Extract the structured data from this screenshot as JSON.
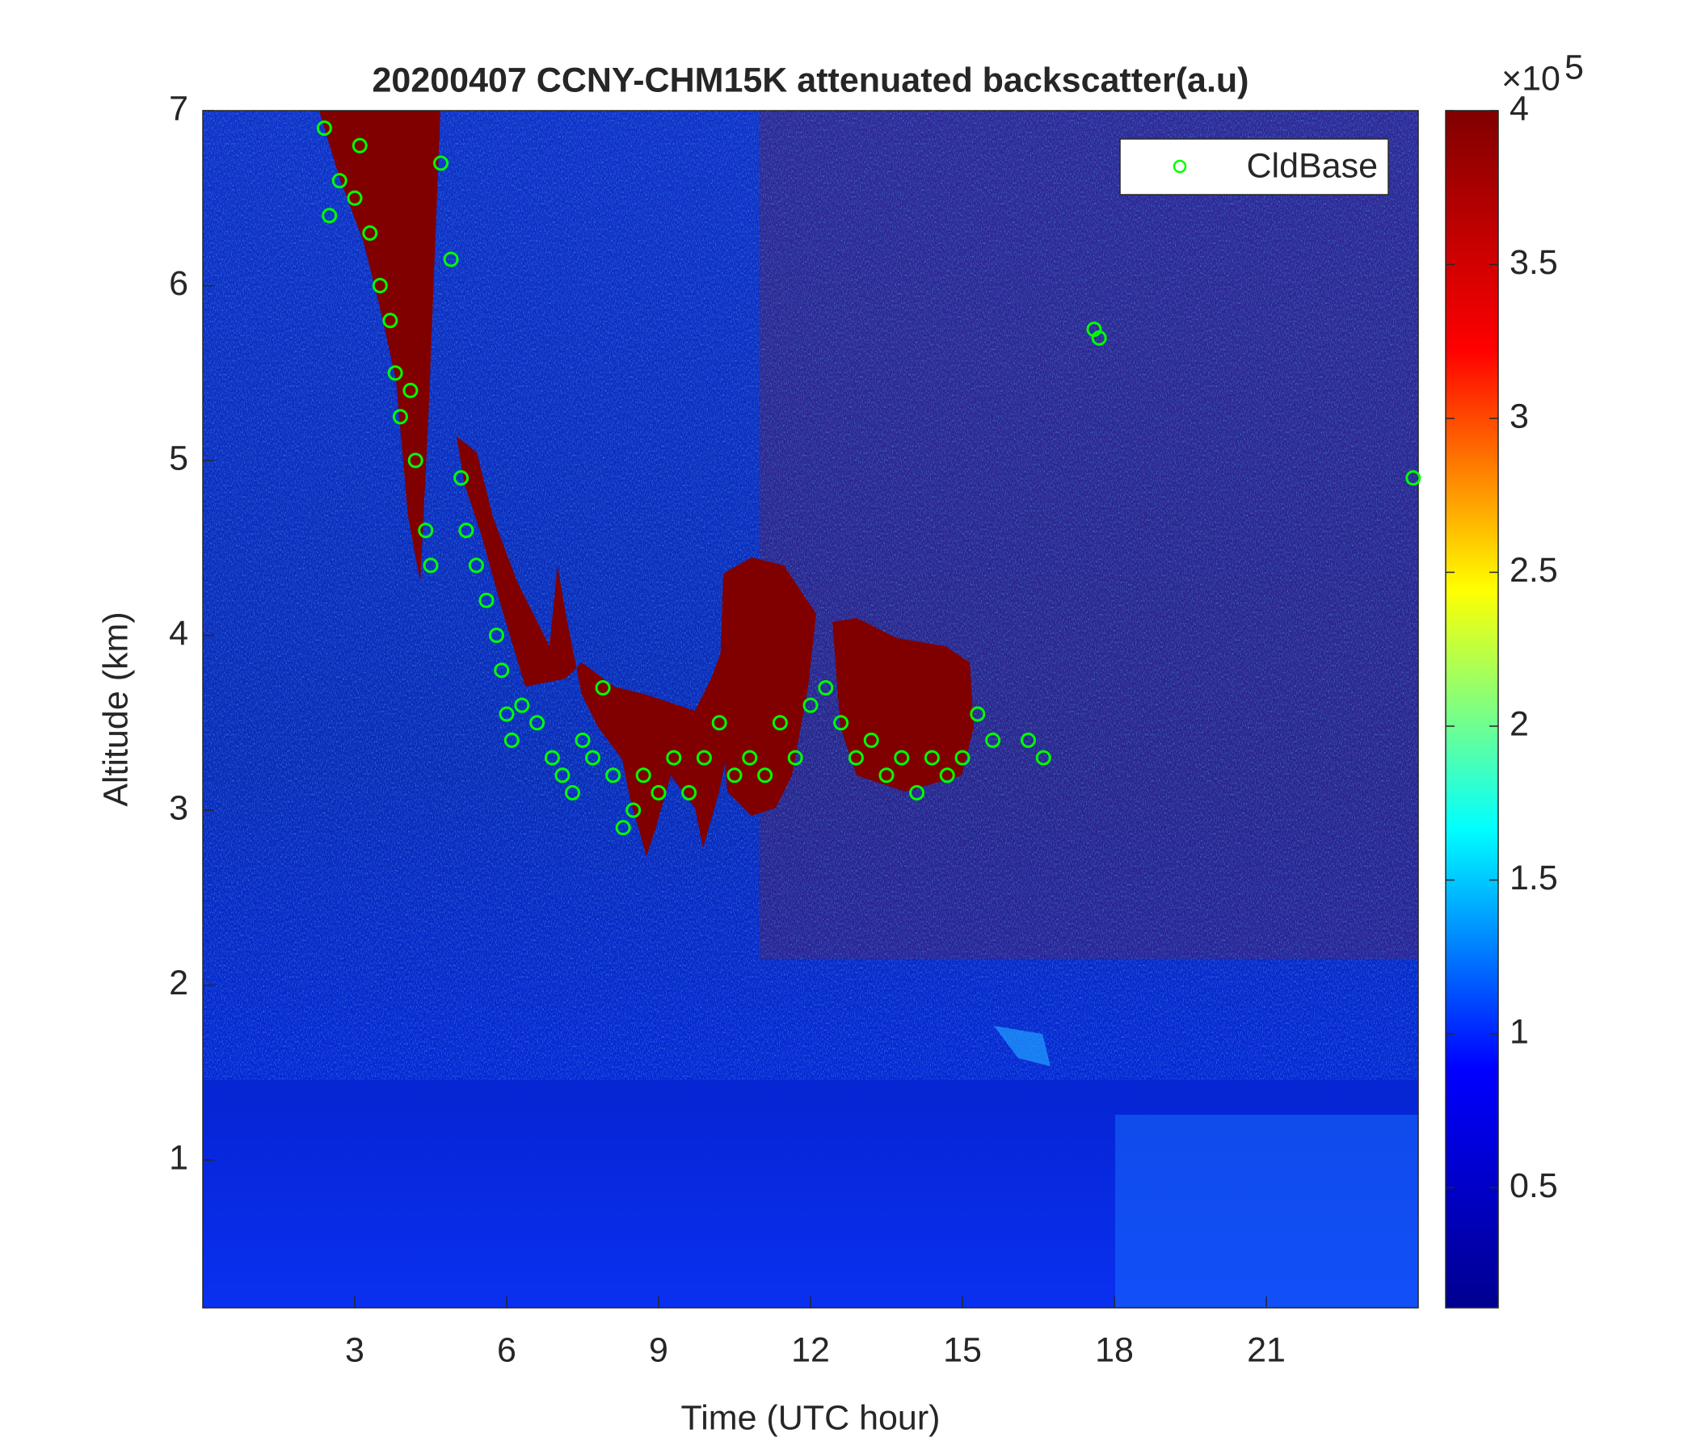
{
  "chart_data": {
    "type": "scatter",
    "title": "20200407 CCNY-CHM15K attenuated backscatter(a.u)",
    "x_label": "Time (UTC hour)",
    "y_label": "Altitude (km)",
    "xlim": [
      0,
      24
    ],
    "xticks": [
      3,
      6,
      9,
      12,
      15,
      18,
      21
    ],
    "ylim": [
      0.155,
      7
    ],
    "yticks": [
      1,
      2,
      3,
      4,
      5,
      6,
      7
    ],
    "legend_position": "upper right",
    "series": [
      {
        "name": "CldBase",
        "color": "#00ff00",
        "x": [
          2.4,
          2.5,
          2.7,
          3.0,
          3.1,
          3.3,
          3.5,
          3.7,
          3.8,
          3.9,
          4.1,
          4.2,
          4.4,
          4.5,
          4.7,
          4.9,
          5.1,
          5.2,
          5.4,
          5.6,
          5.8,
          5.9,
          6.0,
          6.1,
          6.3,
          6.6,
          6.9,
          7.1,
          7.3,
          7.5,
          7.7,
          7.9,
          8.1,
          8.3,
          8.5,
          8.7,
          9.0,
          9.3,
          9.6,
          9.9,
          10.2,
          10.5,
          10.8,
          11.1,
          11.4,
          11.7,
          12.0,
          12.3,
          12.6,
          12.9,
          13.2,
          13.5,
          13.8,
          14.1,
          14.4,
          14.7,
          15.0,
          15.3,
          15.6,
          16.3,
          16.6,
          17.6,
          17.7,
          23.9
        ],
        "values": [
          6.9,
          6.4,
          6.6,
          6.5,
          6.8,
          6.3,
          6.0,
          5.8,
          5.5,
          5.25,
          5.4,
          5.0,
          4.6,
          4.4,
          6.7,
          6.15,
          4.9,
          4.6,
          4.4,
          4.2,
          4.0,
          3.8,
          3.55,
          3.4,
          3.6,
          3.5,
          3.3,
          3.2,
          3.1,
          3.4,
          3.3,
          3.7,
          3.2,
          2.9,
          3.0,
          3.2,
          3.1,
          3.3,
          3.1,
          3.3,
          3.5,
          3.2,
          3.3,
          3.2,
          3.5,
          3.3,
          3.6,
          3.7,
          3.5,
          3.3,
          3.4,
          3.2,
          3.3,
          3.1,
          3.3,
          3.2,
          3.3,
          3.55,
          3.4,
          3.4,
          3.3,
          5.75,
          5.7,
          4.9
        ]
      }
    ],
    "colorbar": {
      "clim": [
        0.11,
        4
      ],
      "ticks": [
        0.5,
        1,
        1.5,
        2,
        2.5,
        3,
        3.5,
        4
      ],
      "multiplier": "×10",
      "exponent": 5,
      "colormap": [
        "#00008f",
        "#0000ff",
        "#00ffff",
        "#ffff00",
        "#ff0000",
        "#800000"
      ]
    }
  }
}
